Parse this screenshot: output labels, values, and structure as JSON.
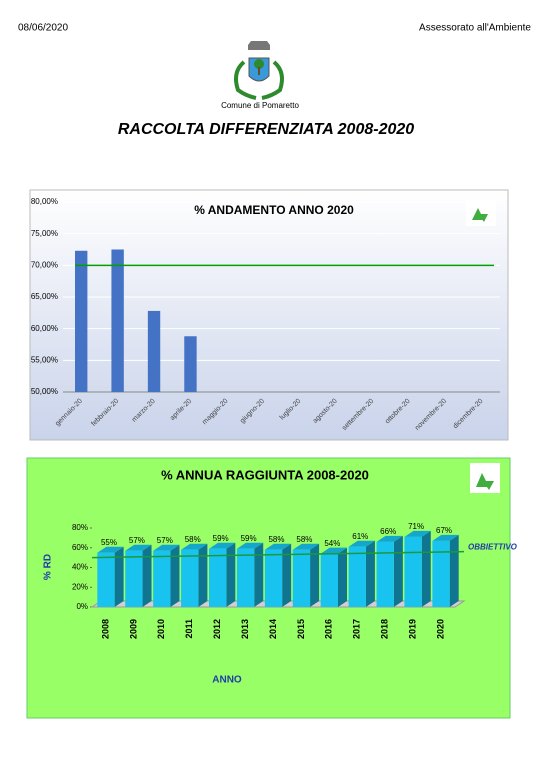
{
  "header": {
    "date": "08/06/2020",
    "department": "Assessorato all'Ambiente"
  },
  "logo_caption": "Comune di Pomaretto",
  "title": "RACCOLTA DIFFERENZIATA 2008-2020",
  "chart_data": [
    {
      "type": "bar",
      "title": "% ANDAMENTO ANNO 2020",
      "categories": [
        "gennaio-20",
        "febbraio-20",
        "marzo-20",
        "aprile-20",
        "maggio-20",
        "giugno-20",
        "luglio-20",
        "agosto-20",
        "settembre-20",
        "ottobre-20",
        "novembre-20",
        "dicembre-20"
      ],
      "values": [
        72.3,
        72.5,
        62.8,
        58.8,
        null,
        null,
        null,
        null,
        null,
        null,
        null,
        null
      ],
      "color": "#4472c4",
      "ylim": [
        50,
        80
      ],
      "yticks": [
        {
          "value": 50,
          "label": "50,00%"
        },
        {
          "value": 55,
          "label": "55,00%"
        },
        {
          "value": 60,
          "label": "60,00%"
        },
        {
          "value": 65,
          "label": "65,00%"
        },
        {
          "value": 70,
          "label": "70,00%"
        },
        {
          "value": 75,
          "label": "75,00%"
        },
        {
          "value": 80,
          "label": "80,00%"
        }
      ],
      "grid": true,
      "target": 70,
      "target_color": "#00a000"
    },
    {
      "type": "bar3d",
      "title": "% ANNUA RAGGIUNTA 2008-2020",
      "categories": [
        "2008",
        "2009",
        "2010",
        "2011",
        "2012",
        "2013",
        "2014",
        "2015",
        "2016",
        "2017",
        "2018",
        "2019",
        "2020"
      ],
      "values": [
        55,
        57,
        57,
        58,
        59,
        59,
        58,
        58,
        54,
        61,
        66,
        71,
        67
      ],
      "value_labels": [
        "55%",
        "57%",
        "57%",
        "58%",
        "59%",
        "59%",
        "58%",
        "58%",
        "54%",
        "61%",
        "66%",
        "71%",
        "67%"
      ],
      "color": "#19c3f0",
      "ylim": [
        0,
        80
      ],
      "yticks": [
        {
          "value": 0,
          "label": "0%"
        },
        {
          "value": 20,
          "label": "20%"
        },
        {
          "value": 40,
          "label": "40%"
        },
        {
          "value": 60,
          "label": "60%"
        },
        {
          "value": 80,
          "label": "80%"
        }
      ],
      "ylabel": "% RD",
      "xlabel": "ANNO",
      "grid": false,
      "target": 50,
      "target_label": "OBBIETTIVO",
      "target_color": "#1a9a3a"
    }
  ]
}
